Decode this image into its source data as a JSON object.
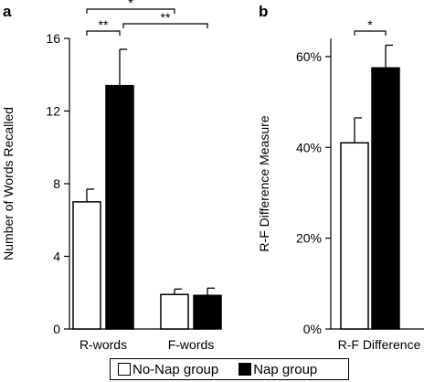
{
  "chart_data": [
    {
      "panel_label": "a",
      "type": "bar",
      "categories": [
        "R-words",
        "F-words"
      ],
      "series": [
        {
          "name": "No-Nap group",
          "values": [
            7.0,
            1.9
          ],
          "errors": [
            0.7,
            0.3
          ],
          "color": "#ffffff"
        },
        {
          "name": "Nap group",
          "values": [
            13.4,
            1.85
          ],
          "errors": [
            2.0,
            0.4
          ],
          "color": "#000000"
        }
      ],
      "xlabel": "",
      "ylabel": "Number of Words Recalled",
      "ylim": [
        0,
        16
      ],
      "yticks": [
        0,
        4,
        8,
        12,
        16
      ],
      "significance": [
        {
          "from": "R-words No-Nap",
          "to": "R-words Nap",
          "label": "**"
        },
        {
          "from": "R-words Nap",
          "to": "F-words Nap",
          "label": "**"
        },
        {
          "from": "R-words No-Nap",
          "to": "F-words No-Nap",
          "label": "*"
        }
      ],
      "grid": false
    },
    {
      "panel_label": "b",
      "type": "bar",
      "categories": [
        "R-F Difference"
      ],
      "series": [
        {
          "name": "No-Nap group",
          "values": [
            41
          ],
          "errors": [
            5.5
          ],
          "color": "#ffffff"
        },
        {
          "name": "Nap group",
          "values": [
            57.5
          ],
          "errors": [
            5
          ],
          "color": "#000000"
        }
      ],
      "xlabel": "",
      "ylabel": "R-F Difference Measure",
      "ylim": [
        0,
        64
      ],
      "yticks": [
        0,
        20,
        40,
        60
      ],
      "ytick_labels": [
        "0%",
        "20%",
        "40%",
        "60%"
      ],
      "significance": [
        {
          "from": "R-F Difference No-Nap",
          "to": "R-F Difference Nap",
          "label": "*"
        }
      ],
      "grid": false
    }
  ],
  "legend": {
    "placement": "bottom-center",
    "items": [
      {
        "label": "No-Nap group",
        "color": "#ffffff"
      },
      {
        "label": "Nap group",
        "color": "#000000"
      }
    ]
  }
}
